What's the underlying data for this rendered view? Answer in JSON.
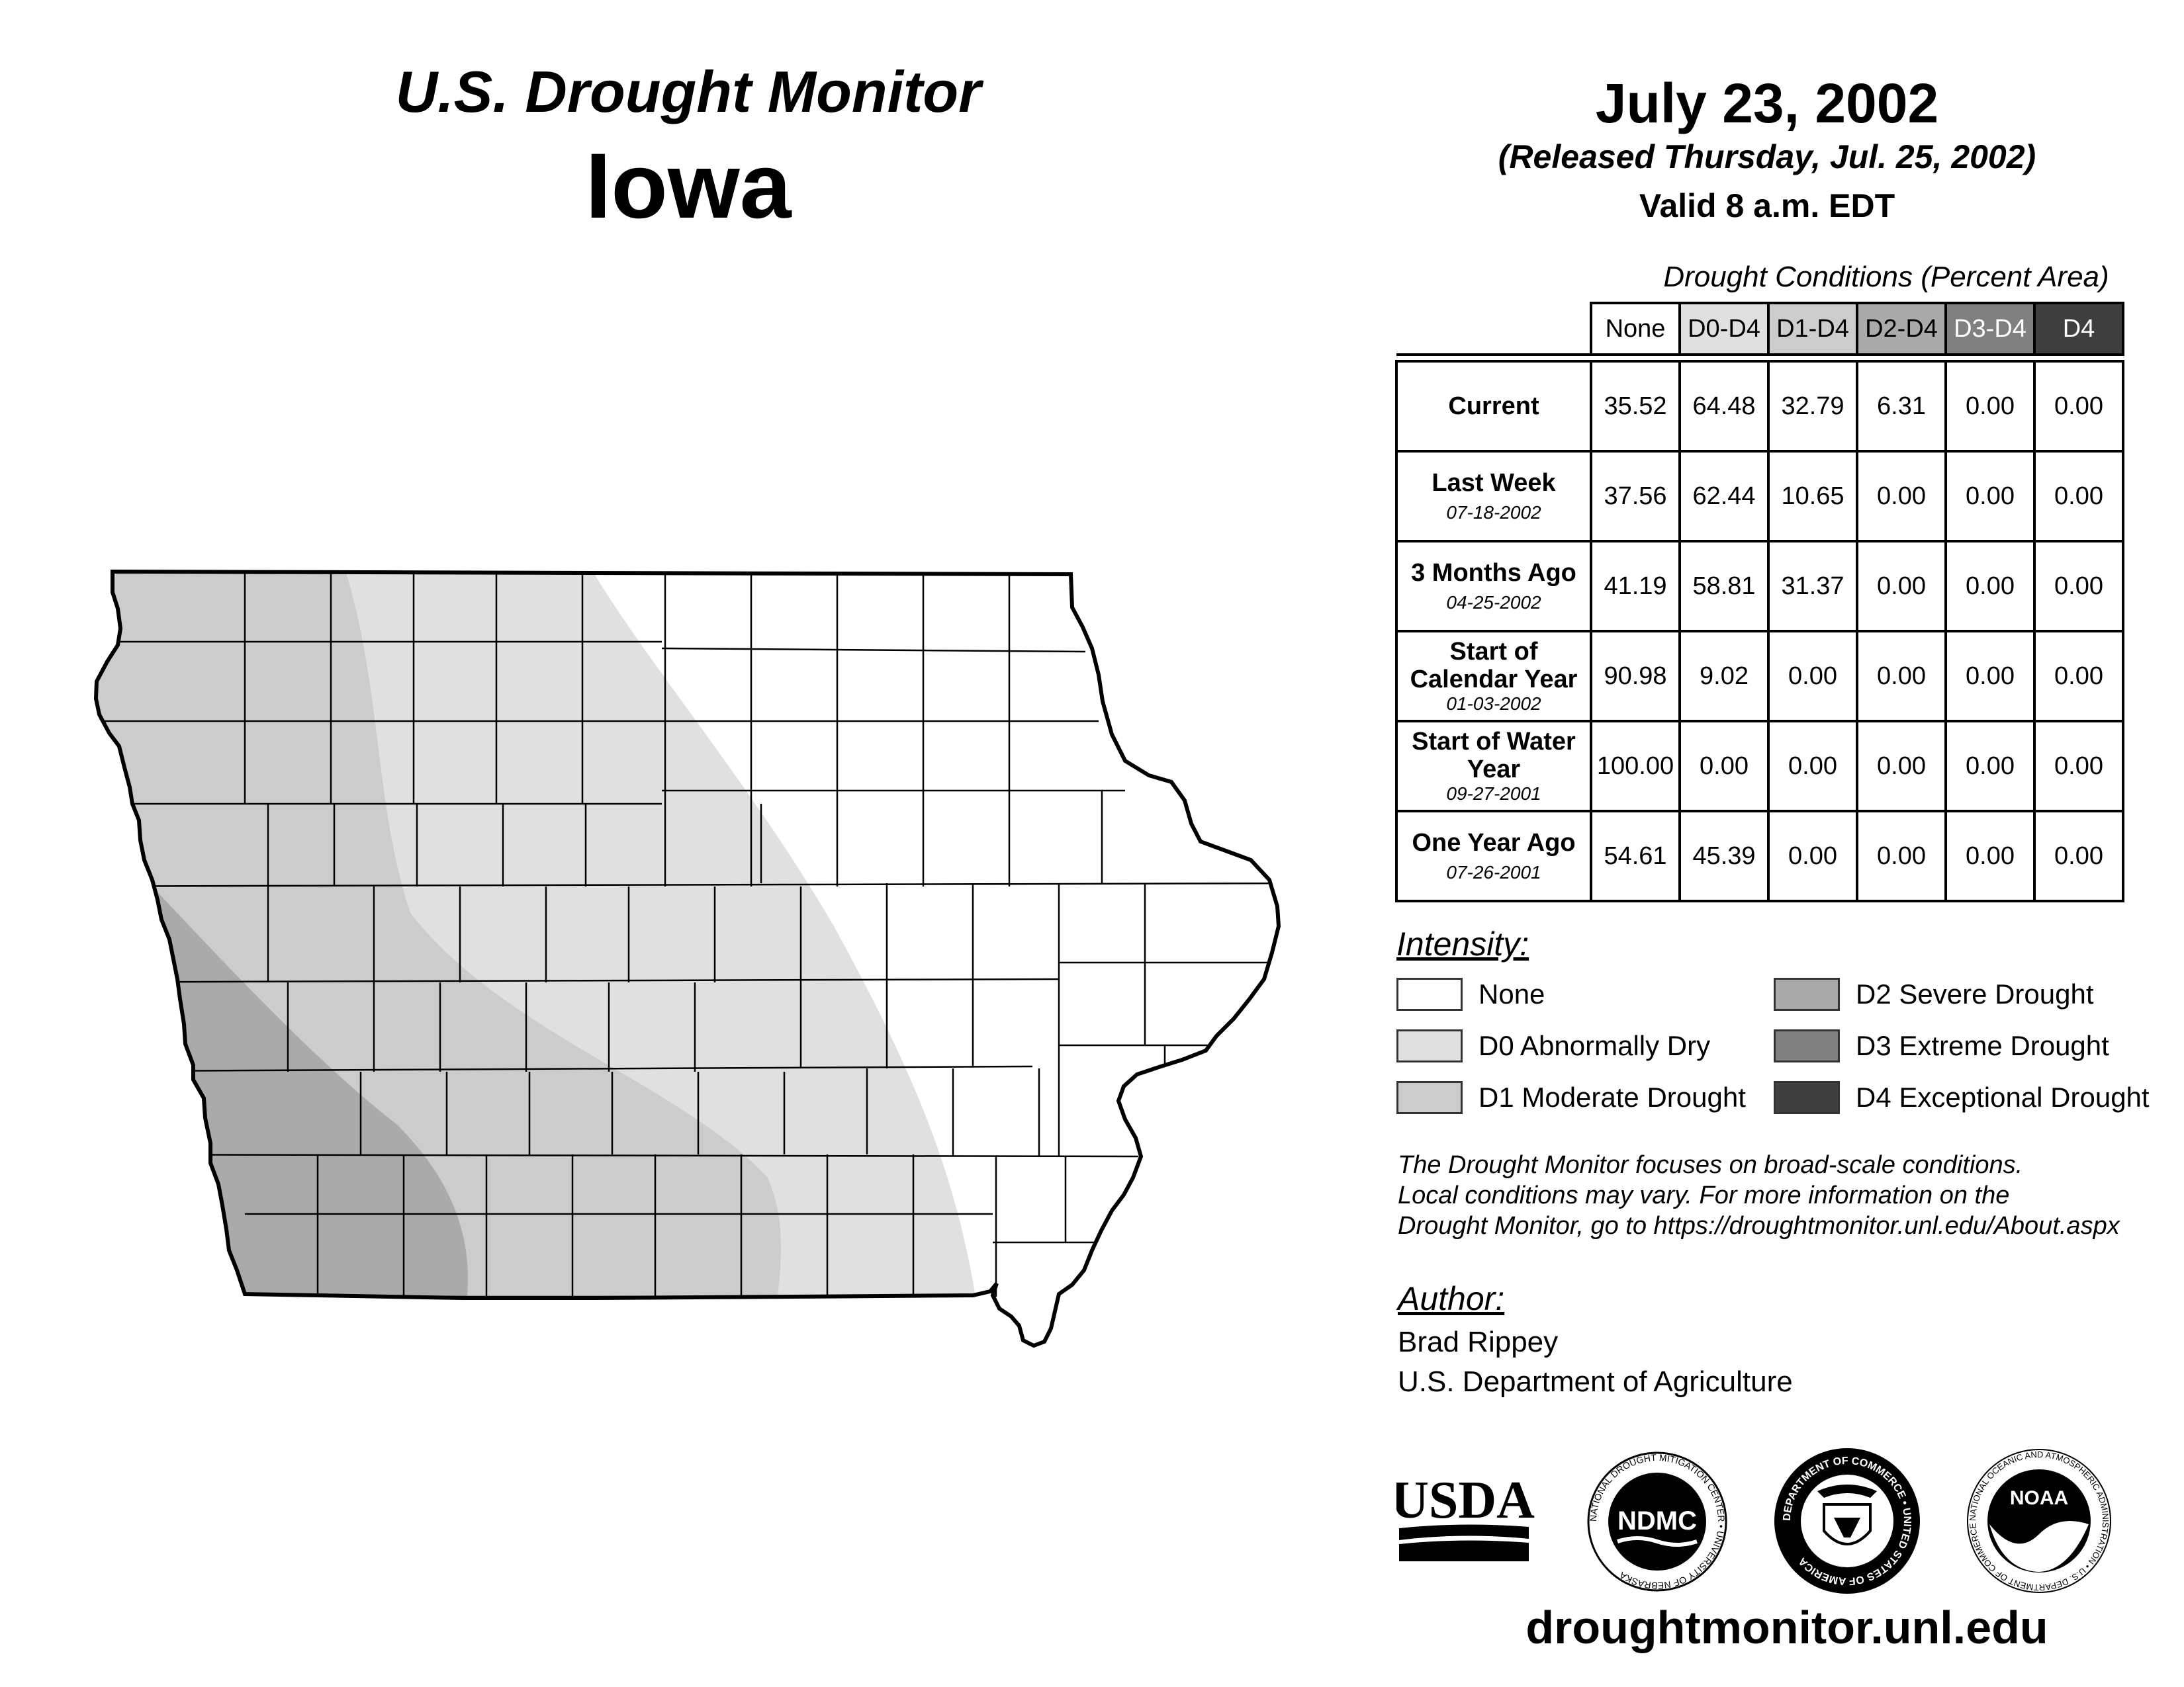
{
  "header": {
    "product": "U.S. Drought Monitor",
    "state": "Iowa",
    "date": "July 23, 2002",
    "released": "(Released Thursday, Jul. 25, 2002)",
    "valid": "Valid 8 a.m. EDT"
  },
  "table": {
    "caption": "Drought Conditions (Percent Area)",
    "columns": [
      "None",
      "D0-D4",
      "D1-D4",
      "D2-D4",
      "D3-D4",
      "D4"
    ],
    "column_colors": [
      "#ffffff",
      "#e0e0e0",
      "#cccccc",
      "#aaaaaa",
      "#808080",
      "#3f3f3f"
    ],
    "rows": [
      {
        "label": "Current",
        "date": "",
        "values": [
          "35.52",
          "64.48",
          "32.79",
          "6.31",
          "0.00",
          "0.00"
        ]
      },
      {
        "label": "Last Week",
        "date": "07-18-2002",
        "values": [
          "37.56",
          "62.44",
          "10.65",
          "0.00",
          "0.00",
          "0.00"
        ]
      },
      {
        "label": "3 Months Ago",
        "date": "04-25-2002",
        "values": [
          "41.19",
          "58.81",
          "31.37",
          "0.00",
          "0.00",
          "0.00"
        ]
      },
      {
        "label": "Start of Calendar Year",
        "date": "01-03-2002",
        "values": [
          "90.98",
          "9.02",
          "0.00",
          "0.00",
          "0.00",
          "0.00"
        ]
      },
      {
        "label": "Start of Water Year",
        "date": "09-27-2001",
        "values": [
          "100.00",
          "0.00",
          "0.00",
          "0.00",
          "0.00",
          "0.00"
        ]
      },
      {
        "label": "One Year Ago",
        "date": "07-26-2001",
        "values": [
          "54.61",
          "45.39",
          "0.00",
          "0.00",
          "0.00",
          "0.00"
        ]
      }
    ]
  },
  "legend": {
    "title": "Intensity:",
    "items": [
      {
        "label": "None",
        "color": "#ffffff"
      },
      {
        "label": "D0 Abnormally Dry",
        "color": "#e0e0e0"
      },
      {
        "label": "D1 Moderate Drought",
        "color": "#cccccc"
      },
      {
        "label": "D2 Severe Drought",
        "color": "#aaaaaa"
      },
      {
        "label": "D3 Extreme Drought",
        "color": "#808080"
      },
      {
        "label": "D4 Exceptional Drought",
        "color": "#3f3f3f"
      }
    ]
  },
  "notes": [
    "The Drought Monitor focuses on broad-scale conditions.",
    "Local conditions may vary. For more information on the",
    "Drought Monitor, go to https://droughtmonitor.unl.edu/About.aspx"
  ],
  "author": {
    "title": "Author:",
    "name": "Brad Rippey",
    "org": "U.S. Department of Agriculture"
  },
  "logos": {
    "usda": "USDA",
    "ndmc": "NDMC",
    "ndmc_ring": "NATIONAL DROUGHT MITIGATION CENTER • UNIVERSITY OF NEBRASKA",
    "doc_ring": "DEPARTMENT OF COMMERCE • UNITED STATES OF AMERICA",
    "noaa": "NOAA",
    "noaa_ring": "NATIONAL OCEANIC AND ATMOSPHERIC ADMINISTRATION • U.S. DEPARTMENT OF COMMERCE"
  },
  "footer": {
    "url": "droughtmonitor.unl.edu"
  }
}
